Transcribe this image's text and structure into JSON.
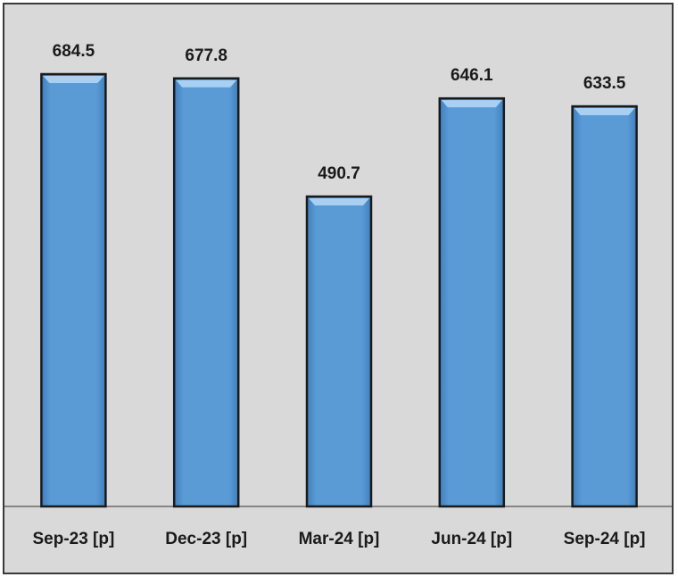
{
  "chart_data": {
    "type": "bar",
    "categories": [
      "Sep-23 [p]",
      "Dec-23 [p]",
      "Mar-24 [p]",
      "Jun-24 [p]",
      "Sep-24 [p]"
    ],
    "values": [
      684.5,
      677.8,
      490.7,
      646.1,
      633.5
    ],
    "color": "#5b9bd5"
  }
}
